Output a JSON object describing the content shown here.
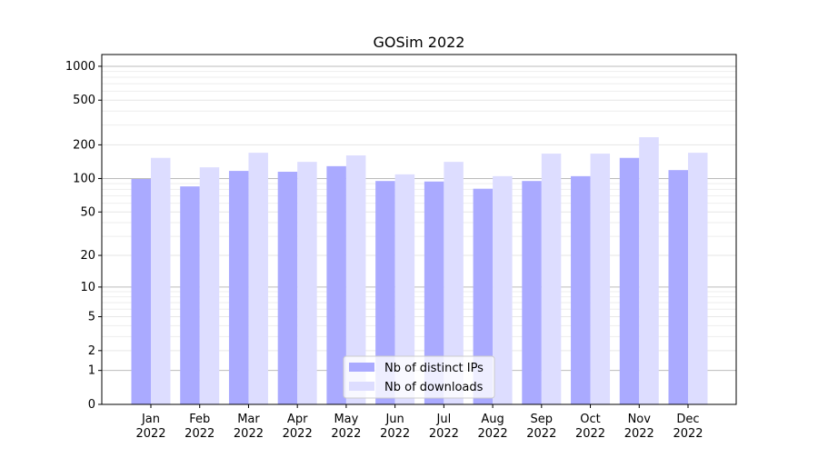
{
  "chart_data": {
    "type": "bar",
    "title": "GOSim 2022",
    "xlabel": "",
    "ylabel": "",
    "yscale": "symlog",
    "ylim": [
      0,
      1300
    ],
    "yticks": [
      0,
      1,
      2,
      5,
      10,
      20,
      50,
      100,
      200,
      500,
      1000
    ],
    "grid": true,
    "legend_position": "lower center",
    "categories": [
      "Jan\n2022",
      "Feb\n2022",
      "Mar\n2022",
      "Apr\n2022",
      "May\n2022",
      "Jun\n2022",
      "Jul\n2022",
      "Aug\n2022",
      "Sep\n2022",
      "Oct\n2022",
      "Nov\n2022",
      "Dec\n2022"
    ],
    "series": [
      {
        "name": "Nb of distinct IPs",
        "color": "#aaaaff",
        "values": [
          99,
          85,
          117,
          115,
          129,
          95,
          94,
          81,
          95,
          105,
          153,
          119
        ]
      },
      {
        "name": "Nb of downloads",
        "color": "#ddddff",
        "values": [
          153,
          126,
          170,
          141,
          161,
          109,
          141,
          105,
          167,
          167,
          234,
          170
        ]
      }
    ]
  }
}
